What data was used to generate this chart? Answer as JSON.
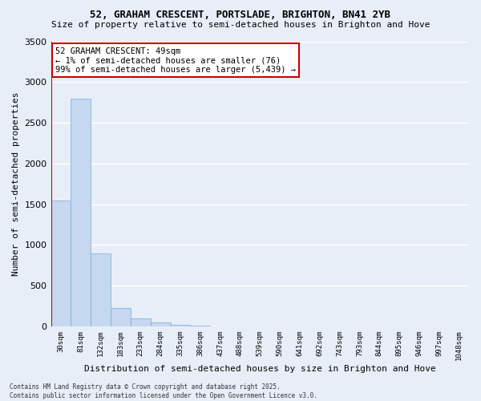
{
  "title1": "52, GRAHAM CRESCENT, PORTSLADE, BRIGHTON, BN41 2YB",
  "title2": "Size of property relative to semi-detached houses in Brighton and Hove",
  "xlabel": "Distribution of semi-detached houses by size in Brighton and Hove",
  "ylabel": "Number of semi-detached properties",
  "bar_labels": [
    "30sqm",
    "81sqm",
    "132sqm",
    "183sqm",
    "233sqm",
    "284sqm",
    "335sqm",
    "386sqm",
    "437sqm",
    "488sqm",
    "539sqm",
    "590sqm",
    "641sqm",
    "692sqm",
    "743sqm",
    "793sqm",
    "844sqm",
    "895sqm",
    "946sqm",
    "997sqm",
    "1048sqm"
  ],
  "bar_values": [
    1550,
    2800,
    900,
    230,
    100,
    50,
    15,
    5,
    2,
    1,
    0,
    0,
    0,
    0,
    0,
    0,
    0,
    0,
    0,
    0,
    0
  ],
  "highlight_bar_index": 0,
  "bar_color": "#c5d8f0",
  "bar_edge_color": "#7aaad4",
  "annotation_box_text": "52 GRAHAM CRESCENT: 49sqm\n← 1% of semi-detached houses are smaller (76)\n99% of semi-detached houses are larger (5,439) →",
  "annotation_box_color": "#ffffff",
  "annotation_box_edge_color": "#cc0000",
  "red_line_color": "#cc0000",
  "footer": "Contains HM Land Registry data © Crown copyright and database right 2025.\nContains public sector information licensed under the Open Government Licence v3.0.",
  "ylim": [
    0,
    3500
  ],
  "yticks": [
    0,
    500,
    1000,
    1500,
    2000,
    2500,
    3000,
    3500
  ],
  "bg_color": "#e8eef8",
  "grid_color": "#ffffff",
  "font_family": "DejaVu Sans Mono"
}
